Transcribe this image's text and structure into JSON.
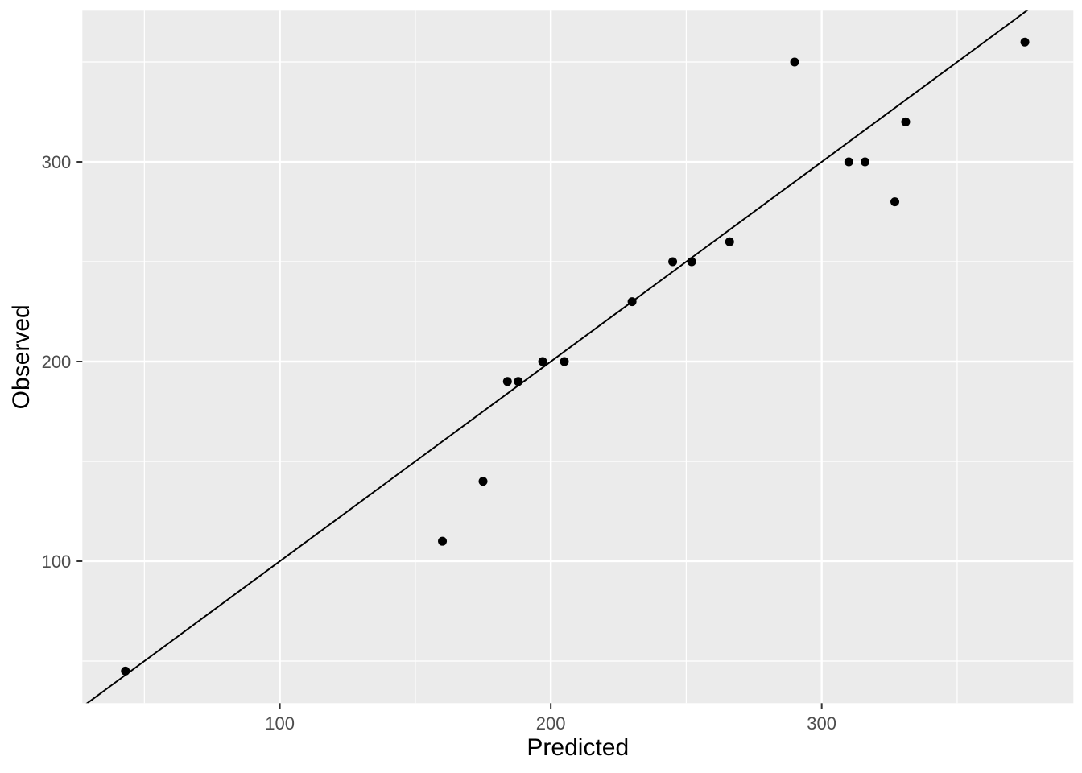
{
  "chart_data": {
    "type": "scatter",
    "title": "",
    "xlabel": "Predicted",
    "ylabel": "Observed",
    "x_ticks": [
      100,
      200,
      300
    ],
    "y_ticks": [
      100,
      200,
      300
    ],
    "x_minor_gridlines": [
      50,
      150,
      250,
      350
    ],
    "y_minor_gridlines": [
      50,
      150,
      250,
      350
    ],
    "xlim": [
      27.1,
      392.9
    ],
    "ylim": [
      28.9,
      375.7
    ],
    "grid": true,
    "legend_position": "none",
    "points": [
      {
        "predicted": 43,
        "observed": 45
      },
      {
        "predicted": 160,
        "observed": 110
      },
      {
        "predicted": 175,
        "observed": 140
      },
      {
        "predicted": 184,
        "observed": 190
      },
      {
        "predicted": 188,
        "observed": 190
      },
      {
        "predicted": 197,
        "observed": 200
      },
      {
        "predicted": 205,
        "observed": 200
      },
      {
        "predicted": 230,
        "observed": 230
      },
      {
        "predicted": 245,
        "observed": 250
      },
      {
        "predicted": 252,
        "observed": 250
      },
      {
        "predicted": 266,
        "observed": 260
      },
      {
        "predicted": 290,
        "observed": 350
      },
      {
        "predicted": 310,
        "observed": 300
      },
      {
        "predicted": 316,
        "observed": 300
      },
      {
        "predicted": 327,
        "observed": 280
      },
      {
        "predicted": 331,
        "observed": 320
      },
      {
        "predicted": 375,
        "observed": 360
      }
    ],
    "reference_line": {
      "slope": 1,
      "intercept": 0
    },
    "style": {
      "panel_bg": "#EBEBEB",
      "grid_color": "#FFFFFF",
      "point_color": "#000000",
      "line_color": "#000000",
      "tick_mark_color": "#333333",
      "tick_label_color": "#4D4D4D",
      "axis_title_color": "#000000",
      "background": "#FFFFFF"
    }
  }
}
